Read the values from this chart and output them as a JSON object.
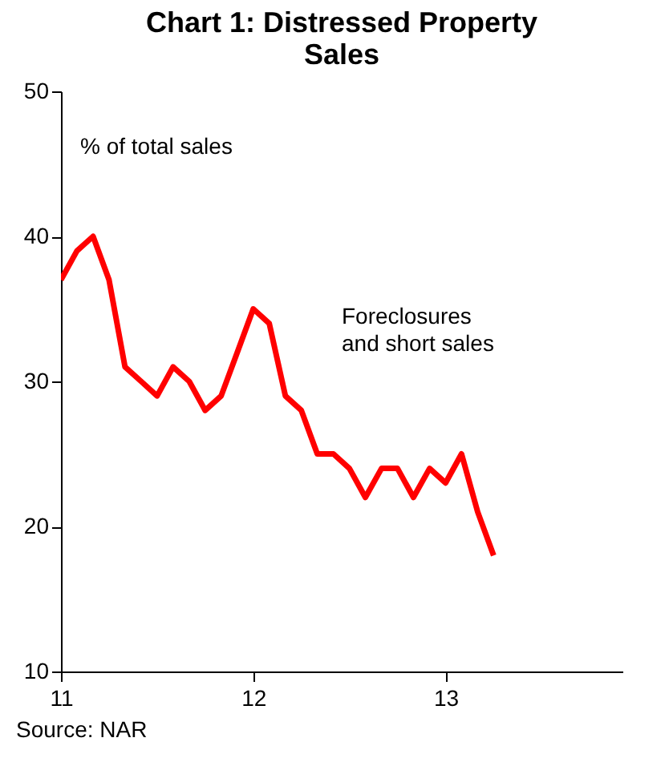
{
  "chart_data": {
    "type": "line",
    "title": "Chart 1: Distressed Property Sales",
    "ylabel": "% of total sales",
    "x": [
      11.0,
      11.083,
      11.167,
      11.25,
      11.333,
      11.417,
      11.5,
      11.583,
      11.667,
      11.75,
      11.833,
      11.917,
      12.0,
      12.083,
      12.167,
      12.25,
      12.333,
      12.417,
      12.5,
      12.583,
      12.667,
      12.75,
      12.833,
      12.917,
      13.0,
      13.083,
      13.167,
      13.25
    ],
    "series": [
      {
        "name": "Foreclosures and short sales",
        "color": "#ff0000",
        "values": [
          37,
          39,
          40,
          37,
          31,
          30,
          29,
          31,
          30,
          28,
          29,
          32,
          35,
          34,
          29,
          28,
          25,
          25,
          24,
          22,
          24,
          24,
          22,
          24,
          23,
          25,
          21,
          18
        ]
      }
    ],
    "xlim": [
      11,
      13.92
    ],
    "ylim": [
      10,
      50
    ],
    "xticks": [
      11,
      12,
      13
    ],
    "yticks": [
      10,
      20,
      30,
      40,
      50
    ],
    "grid": false,
    "marker": "none",
    "line_style": "solid",
    "annotations": [
      "Source: NAR"
    ]
  }
}
